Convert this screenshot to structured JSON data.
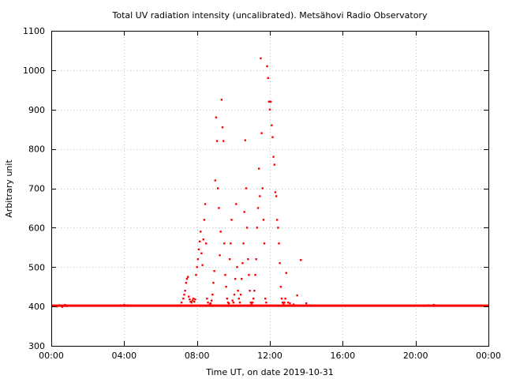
{
  "chart_data": {
    "type": "scatter",
    "title": "Total UV radiation intensity (uncalibrated). Metsähovi Radio Observatory",
    "xlabel": "Time UT, on date 2019-10-31",
    "ylabel": "Arbitrary unit",
    "xlim": [
      0,
      24
    ],
    "ylim": [
      300,
      1100
    ],
    "x_ticks": [
      0,
      4,
      8,
      12,
      16,
      20,
      24
    ],
    "x_tick_labels": [
      "00:00",
      "04:00",
      "08:00",
      "12:00",
      "16:00",
      "20:00",
      "00:00"
    ],
    "y_ticks": [
      300,
      400,
      500,
      600,
      700,
      800,
      900,
      1000,
      1100
    ],
    "y_tick_labels": [
      "300",
      "400",
      "500",
      "600",
      "700",
      "800",
      "900",
      "1000",
      "1100"
    ],
    "grid": true,
    "legend": "none",
    "marker_color": "#ff0000",
    "series": [
      {
        "baseline": {
          "value": 402,
          "x_range": [
            0,
            24
          ]
        },
        "points": [
          [
            0.3,
            400
          ],
          [
            0.45,
            403
          ],
          [
            0.6,
            399
          ],
          [
            0.75,
            404
          ],
          [
            0.85,
            401
          ],
          [
            3.8,
            403
          ],
          [
            4.0,
            404
          ],
          [
            4.2,
            403
          ],
          [
            20.7,
            403
          ],
          [
            21.0,
            404
          ],
          [
            7.05,
            403
          ],
          [
            7.15,
            410
          ],
          [
            7.25,
            420
          ],
          [
            7.3,
            430
          ],
          [
            7.35,
            440
          ],
          [
            7.4,
            460
          ],
          [
            7.45,
            470
          ],
          [
            7.5,
            475
          ],
          [
            7.55,
            425
          ],
          [
            7.6,
            418
          ],
          [
            7.65,
            412
          ],
          [
            7.7,
            410
          ],
          [
            7.75,
            415
          ],
          [
            7.8,
            420
          ],
          [
            7.85,
            412
          ],
          [
            7.9,
            418
          ],
          [
            7.95,
            480
          ],
          [
            8.0,
            500
          ],
          [
            8.05,
            520
          ],
          [
            8.1,
            545
          ],
          [
            8.15,
            565
          ],
          [
            8.2,
            590
          ],
          [
            8.25,
            535
          ],
          [
            8.3,
            505
          ],
          [
            8.35,
            570
          ],
          [
            8.4,
            620
          ],
          [
            8.45,
            660
          ],
          [
            8.5,
            560
          ],
          [
            8.55,
            420
          ],
          [
            8.6,
            410
          ],
          [
            8.7,
            405
          ],
          [
            8.75,
            408
          ],
          [
            8.8,
            415
          ],
          [
            8.85,
            430
          ],
          [
            8.9,
            460
          ],
          [
            8.95,
            490
          ],
          [
            9.0,
            720
          ],
          [
            9.05,
            880
          ],
          [
            9.1,
            820
          ],
          [
            9.15,
            700
          ],
          [
            9.2,
            650
          ],
          [
            9.25,
            530
          ],
          [
            9.3,
            590
          ],
          [
            9.35,
            925
          ],
          [
            9.4,
            855
          ],
          [
            9.45,
            820
          ],
          [
            9.5,
            560
          ],
          [
            9.55,
            480
          ],
          [
            9.6,
            450
          ],
          [
            9.65,
            420
          ],
          [
            9.7,
            410
          ],
          [
            9.75,
            408
          ],
          [
            9.8,
            520
          ],
          [
            9.85,
            560
          ],
          [
            9.9,
            620
          ],
          [
            9.95,
            415
          ],
          [
            10.0,
            410
          ],
          [
            10.05,
            430
          ],
          [
            10.1,
            470
          ],
          [
            10.15,
            660
          ],
          [
            10.2,
            500
          ],
          [
            10.25,
            440
          ],
          [
            10.3,
            420
          ],
          [
            10.35,
            410
          ],
          [
            10.4,
            430
          ],
          [
            10.45,
            470
          ],
          [
            10.5,
            510
          ],
          [
            10.55,
            560
          ],
          [
            10.6,
            640
          ],
          [
            10.65,
            822
          ],
          [
            10.7,
            700
          ],
          [
            10.75,
            600
          ],
          [
            10.8,
            520
          ],
          [
            10.85,
            480
          ],
          [
            10.9,
            440
          ],
          [
            10.95,
            410
          ],
          [
            11.0,
            405
          ],
          [
            11.05,
            410
          ],
          [
            11.1,
            420
          ],
          [
            11.15,
            440
          ],
          [
            11.2,
            480
          ],
          [
            11.25,
            520
          ],
          [
            11.3,
            600
          ],
          [
            11.35,
            650
          ],
          [
            11.4,
            750
          ],
          [
            11.45,
            680
          ],
          [
            11.5,
            1030
          ],
          [
            11.55,
            840
          ],
          [
            11.6,
            700
          ],
          [
            11.65,
            620
          ],
          [
            11.7,
            560
          ],
          [
            11.75,
            420
          ],
          [
            11.8,
            410
          ],
          [
            11.85,
            1010
          ],
          [
            11.9,
            980
          ],
          [
            11.95,
            920
          ],
          [
            12.0,
            900
          ],
          [
            12.05,
            920
          ],
          [
            12.1,
            860
          ],
          [
            12.15,
            830
          ],
          [
            12.2,
            780
          ],
          [
            12.25,
            760
          ],
          [
            12.3,
            690
          ],
          [
            12.35,
            680
          ],
          [
            12.4,
            620
          ],
          [
            12.45,
            600
          ],
          [
            12.5,
            560
          ],
          [
            12.55,
            510
          ],
          [
            12.6,
            450
          ],
          [
            12.65,
            420
          ],
          [
            12.7,
            410
          ],
          [
            12.75,
            405
          ],
          [
            12.8,
            410
          ],
          [
            12.85,
            420
          ],
          [
            12.9,
            485
          ],
          [
            13.0,
            410
          ],
          [
            13.1,
            408
          ],
          [
            13.3,
            405
          ],
          [
            13.5,
            428
          ],
          [
            13.7,
            518
          ],
          [
            14.0,
            408
          ],
          [
            14.2,
            403
          ]
        ]
      }
    ]
  }
}
